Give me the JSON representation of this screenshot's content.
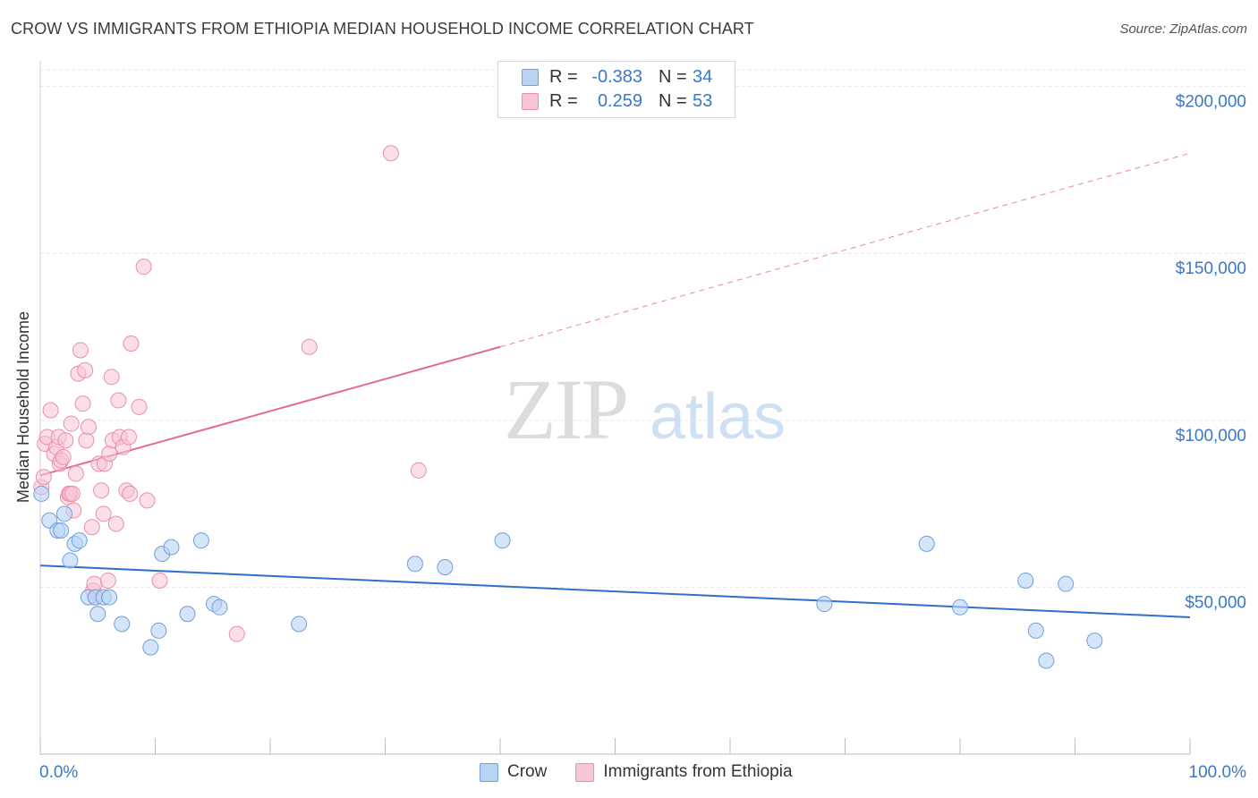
{
  "title": "CROW VS IMMIGRANTS FROM ETHIOPIA MEDIAN HOUSEHOLD INCOME CORRELATION CHART",
  "source": "Source: ZipAtlas.com",
  "watermark": {
    "zip": "ZIP",
    "atlas": "atlas"
  },
  "legend": {
    "r_label": "R =",
    "n_label": "N =",
    "rows": [
      {
        "name": "Crow",
        "r": "-0.383",
        "n": "34"
      },
      {
        "name": "Immigrants from Ethiopia",
        "r": "0.259",
        "n": "53"
      }
    ]
  },
  "colors": {
    "crow_fill": "#b9d3f5",
    "crow_stroke": "#6f9fdc",
    "crow_line": "#2f6fce",
    "eth_fill": "#f8c5d5",
    "eth_stroke": "#ea8fac",
    "eth_line": "#e36a93",
    "axis_label": "#3a78c9",
    "grid": "#e6e6e6"
  },
  "chart_data": {
    "type": "scatter",
    "title": "CROW VS IMMIGRANTS FROM ETHIOPIA MEDIAN HOUSEHOLD INCOME CORRELATION CHART",
    "xlabel": "",
    "ylabel": "Median Household Income",
    "x_tick_labels": [
      "0.0%",
      "100.0%"
    ],
    "xlim": [
      0,
      100
    ],
    "ylim": [
      0,
      205000
    ],
    "y_ticks": [
      50000,
      100000,
      150000,
      200000
    ],
    "y_tick_labels": [
      "$50,000",
      "$100,000",
      "$150,000",
      "$200,000"
    ],
    "legend_position": "top-center",
    "series": [
      {
        "name": "Crow",
        "points": [
          [
            0.1,
            78000
          ],
          [
            0.8,
            70000
          ],
          [
            1.5,
            67000
          ],
          [
            1.8,
            67000
          ],
          [
            2.1,
            72000
          ],
          [
            2.6,
            58000
          ],
          [
            3.0,
            63000
          ],
          [
            3.4,
            64000
          ],
          [
            4.2,
            47000
          ],
          [
            4.8,
            47000
          ],
          [
            5.0,
            42000
          ],
          [
            5.5,
            47000
          ],
          [
            6.0,
            47000
          ],
          [
            7.1,
            39000
          ],
          [
            9.6,
            32000
          ],
          [
            10.3,
            37000
          ],
          [
            10.6,
            60000
          ],
          [
            11.4,
            62000
          ],
          [
            12.8,
            42000
          ],
          [
            14.0,
            64000
          ],
          [
            15.1,
            45000
          ],
          [
            15.6,
            44000
          ],
          [
            22.5,
            39000
          ],
          [
            32.6,
            57000
          ],
          [
            35.2,
            56000
          ],
          [
            40.2,
            64000
          ],
          [
            68.2,
            45000
          ],
          [
            77.1,
            63000
          ],
          [
            80.0,
            44000
          ],
          [
            85.7,
            52000
          ],
          [
            86.6,
            37000
          ],
          [
            87.5,
            28000
          ],
          [
            89.2,
            51000
          ],
          [
            91.7,
            34000
          ]
        ],
        "trend": {
          "x": [
            0,
            100
          ],
          "y": [
            56500,
            41000
          ]
        }
      },
      {
        "name": "Immigrants from Ethiopia",
        "points": [
          [
            0.1,
            80000
          ],
          [
            0.3,
            83000
          ],
          [
            0.4,
            93000
          ],
          [
            0.6,
            95000
          ],
          [
            0.9,
            103000
          ],
          [
            1.2,
            90000
          ],
          [
            1.4,
            92000
          ],
          [
            1.6,
            95000
          ],
          [
            1.7,
            87000
          ],
          [
            1.8,
            88000
          ],
          [
            2.0,
            89000
          ],
          [
            2.2,
            94000
          ],
          [
            2.4,
            77000
          ],
          [
            2.5,
            78000
          ],
          [
            2.6,
            78000
          ],
          [
            2.7,
            99000
          ],
          [
            2.8,
            78000
          ],
          [
            2.9,
            73000
          ],
          [
            3.1,
            84000
          ],
          [
            3.3,
            114000
          ],
          [
            3.5,
            121000
          ],
          [
            3.7,
            105000
          ],
          [
            3.9,
            115000
          ],
          [
            4.0,
            94000
          ],
          [
            4.2,
            98000
          ],
          [
            4.5,
            68000
          ],
          [
            4.6,
            49000
          ],
          [
            4.7,
            51000
          ],
          [
            4.8,
            47000
          ],
          [
            5.1,
            87000
          ],
          [
            5.3,
            79000
          ],
          [
            5.5,
            72000
          ],
          [
            5.6,
            87000
          ],
          [
            5.9,
            52000
          ],
          [
            6.0,
            90000
          ],
          [
            6.2,
            113000
          ],
          [
            6.3,
            94000
          ],
          [
            6.6,
            69000
          ],
          [
            6.8,
            106000
          ],
          [
            6.9,
            95000
          ],
          [
            7.2,
            92000
          ],
          [
            7.5,
            79000
          ],
          [
            7.7,
            95000
          ],
          [
            7.8,
            78000
          ],
          [
            7.9,
            123000
          ],
          [
            8.6,
            104000
          ],
          [
            9.3,
            76000
          ],
          [
            9.0,
            146000
          ],
          [
            10.4,
            52000
          ],
          [
            17.1,
            36000
          ],
          [
            23.4,
            122000
          ],
          [
            30.5,
            180000
          ],
          [
            32.9,
            85000
          ]
        ],
        "trend": {
          "x": [
            0,
            40
          ],
          "y": [
            83500,
            122000
          ]
        },
        "trend_dashed": {
          "x": [
            40,
            100
          ],
          "y": [
            122000,
            180000
          ]
        }
      }
    ]
  }
}
